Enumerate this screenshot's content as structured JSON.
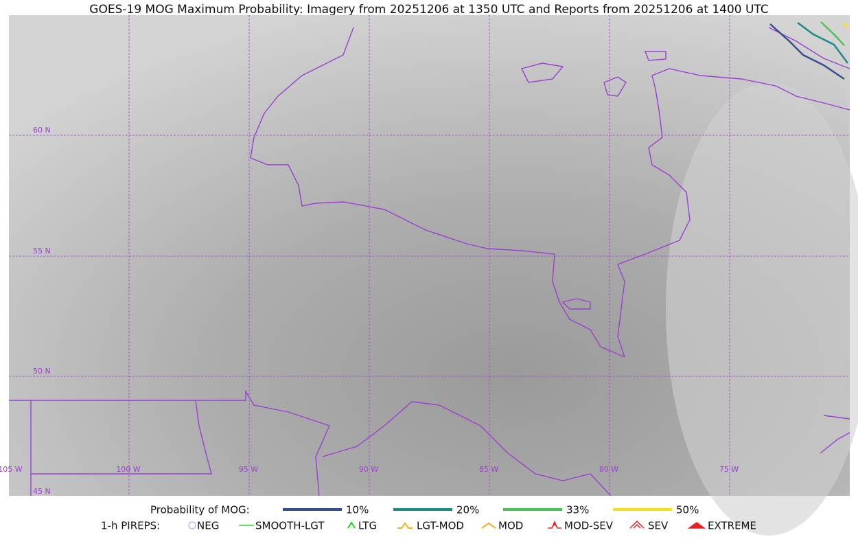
{
  "title": "GOES-19 MOG Maximum Probability: Imagery from 20251206 at 1350 UTC and Reports from 20251206 at 1400 UTC",
  "grid_labels": {
    "latitude": [
      "60 N",
      "55 N",
      "50 N",
      "45 N"
    ],
    "longitude": [
      "105 W",
      "100 W",
      "95 W",
      "90 W",
      "85 W",
      "80 W",
      "75 W"
    ]
  },
  "legend": {
    "probability": {
      "label": "Probability of MOG:",
      "items": [
        {
          "label": "10%",
          "color": "#34508c"
        },
        {
          "label": "20%",
          "color": "#1f8a86"
        },
        {
          "label": "33%",
          "color": "#4cc15c"
        },
        {
          "label": "50%",
          "color": "#f5e21c"
        }
      ]
    },
    "pireps": {
      "label": "1-h PIREPS:",
      "items": [
        {
          "label": "NEG",
          "color": "#b9b9f5"
        },
        {
          "label": "SMOOTH-LGT",
          "color": "#33dd33"
        },
        {
          "label": "LTG",
          "color": "#11dd11"
        },
        {
          "label": "LGT-MOD",
          "color": "#f2b21c"
        },
        {
          "label": "MOD",
          "color": "#f2b21c"
        },
        {
          "label": "MOD-SEV",
          "color": "#e82020"
        },
        {
          "label": "SEV",
          "color": "#e82020"
        },
        {
          "label": "EXTREME",
          "color": "#e82020"
        }
      ]
    }
  }
}
